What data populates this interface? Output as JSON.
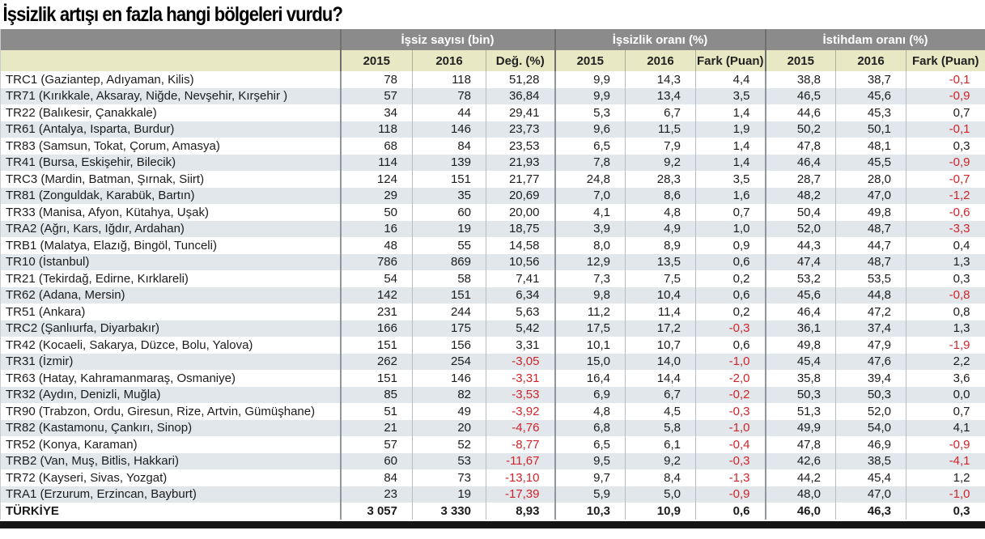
{
  "title": "İşsizlik artışı en fazla hangi bölgeleri vurdu?",
  "colors": {
    "group_header_bg": "#8b8b8b",
    "group_header_text": "#ffffff",
    "year_header_bg": "#e8e8c4",
    "row_stripe_bg": "#e1e7eb",
    "negative_value": "#d2232a",
    "bottom_bar": "#151515"
  },
  "chart_data": {
    "type": "table",
    "title": "İşsizlik artışı en fazla hangi bölgeleri vurdu?",
    "region_column_label": "",
    "groups": [
      {
        "label": "İşsiz sayısı (bin)",
        "columns": [
          "2015",
          "2016",
          "Değ. (%)"
        ]
      },
      {
        "label": "İşsizlik oranı (%)",
        "columns": [
          "2015",
          "2016",
          "Fark (Puan)"
        ]
      },
      {
        "label": "İstihdam oranı (%)",
        "columns": [
          "2015",
          "2016",
          "Fark (Puan)"
        ]
      }
    ],
    "rows": [
      {
        "region": "TRC1 (Gaziantep, Adıyaman, Kilis)",
        "values": [
          "78",
          "118",
          "51,28",
          "9,9",
          "14,3",
          "4,4",
          "38,8",
          "38,7",
          "-0,1"
        ]
      },
      {
        "region": "TR71 (Kırıkkale, Aksaray, Niğde, Nevşehir, Kırşehir )",
        "values": [
          "57",
          "78",
          "36,84",
          "9,9",
          "13,4",
          "3,5",
          "46,5",
          "45,6",
          "-0,9"
        ]
      },
      {
        "region": "TR22 (Balıkesir, Çanakkale)",
        "values": [
          "34",
          "44",
          "29,41",
          "5,3",
          "6,7",
          "1,4",
          "44,6",
          "45,3",
          "0,7"
        ]
      },
      {
        "region": "TR61 (Antalya, Isparta, Burdur)",
        "values": [
          "118",
          "146",
          "23,73",
          "9,6",
          "11,5",
          "1,9",
          "50,2",
          "50,1",
          "-0,1"
        ]
      },
      {
        "region": "TR83 (Samsun, Tokat, Çorum, Amasya)",
        "values": [
          "68",
          "84",
          "23,53",
          "6,5",
          "7,9",
          "1,4",
          "47,8",
          "48,1",
          "0,3"
        ]
      },
      {
        "region": "TR41 (Bursa, Eskişehir, Bilecik)",
        "values": [
          "114",
          "139",
          "21,93",
          "7,8",
          "9,2",
          "1,4",
          "46,4",
          "45,5",
          "-0,9"
        ]
      },
      {
        "region": "TRC3 (Mardin, Batman, Şırnak, Siirt)",
        "values": [
          "124",
          "151",
          "21,77",
          "24,8",
          "28,3",
          "3,5",
          "28,7",
          "28,0",
          "-0,7"
        ]
      },
      {
        "region": "TR81 (Zonguldak, Karabük, Bartın)",
        "values": [
          "29",
          "35",
          "20,69",
          "7,0",
          "8,6",
          "1,6",
          "48,2",
          "47,0",
          "-1,2"
        ]
      },
      {
        "region": "TR33 (Manisa, Afyon, Kütahya, Uşak)",
        "values": [
          "50",
          "60",
          "20,00",
          "4,1",
          "4,8",
          "0,7",
          "50,4",
          "49,8",
          "-0,6"
        ]
      },
      {
        "region": "TRA2 (Ağrı, Kars, Iğdır, Ardahan)",
        "values": [
          "16",
          "19",
          "18,75",
          "3,9",
          "4,9",
          "1,0",
          "52,0",
          "48,7",
          "-3,3"
        ]
      },
      {
        "region": "TRB1 (Malatya, Elazığ, Bingöl, Tunceli)",
        "values": [
          "48",
          "55",
          "14,58",
          "8,0",
          "8,9",
          "0,9",
          "44,3",
          "44,7",
          "0,4"
        ]
      },
      {
        "region": "TR10 (İstanbul)",
        "values": [
          "786",
          "869",
          "10,56",
          "12,9",
          "13,5",
          "0,6",
          "47,4",
          "48,7",
          "1,3"
        ]
      },
      {
        "region": "TR21 (Tekirdağ, Edirne, Kırklareli)",
        "values": [
          "54",
          "58",
          "7,41",
          "7,3",
          "7,5",
          "0,2",
          "53,2",
          "53,5",
          "0,3"
        ]
      },
      {
        "region": "TR62 (Adana, Mersin)",
        "values": [
          "142",
          "151",
          "6,34",
          "9,8",
          "10,4",
          "0,6",
          "45,6",
          "44,8",
          "-0,8"
        ]
      },
      {
        "region": "TR51 (Ankara)",
        "values": [
          "231",
          "244",
          "5,63",
          "11,2",
          "11,4",
          "0,2",
          "46,4",
          "47,2",
          "0,8"
        ]
      },
      {
        "region": "TRC2 (Şanlıurfa, Diyarbakır)",
        "values": [
          "166",
          "175",
          "5,42",
          "17,5",
          "17,2",
          "-0,3",
          "36,1",
          "37,4",
          "1,3"
        ]
      },
      {
        "region": "TR42 (Kocaeli, Sakarya, Düzce, Bolu, Yalova)",
        "values": [
          "151",
          "156",
          "3,31",
          "10,1",
          "10,7",
          "0,6",
          "49,8",
          "47,9",
          "-1,9"
        ]
      },
      {
        "region": "TR31 (İzmir)",
        "values": [
          "262",
          "254",
          "-3,05",
          "15,0",
          "14,0",
          "-1,0",
          "45,4",
          "47,6",
          "2,2"
        ]
      },
      {
        "region": "TR63 (Hatay, Kahramanmaraş, Osmaniye)",
        "values": [
          "151",
          "146",
          "-3,31",
          "16,4",
          "14,4",
          "-2,0",
          "35,8",
          "39,4",
          "3,6"
        ]
      },
      {
        "region": "TR32 (Aydın, Denizli, Muğla)",
        "values": [
          "85",
          "82",
          "-3,53",
          "6,9",
          "6,7",
          "-0,2",
          "50,3",
          "50,3",
          "0,0"
        ]
      },
      {
        "region": "TR90 (Trabzon, Ordu, Giresun, Rize, Artvin, Gümüşhane)",
        "values": [
          "51",
          "49",
          "-3,92",
          "4,8",
          "4,5",
          "-0,3",
          "51,3",
          "52,0",
          "0,7"
        ]
      },
      {
        "region": "TR82 (Kastamonu, Çankırı, Sinop)",
        "values": [
          "21",
          "20",
          "-4,76",
          "6,8",
          "5,8",
          "-1,0",
          "49,9",
          "54,0",
          "4,1"
        ]
      },
      {
        "region": "TR52 (Konya, Karaman)",
        "values": [
          "57",
          "52",
          "-8,77",
          "6,5",
          "6,1",
          "-0,4",
          "47,8",
          "46,9",
          "-0,9"
        ]
      },
      {
        "region": "TRB2 (Van, Muş, Bitlis, Hakkari)",
        "values": [
          "60",
          "53",
          "-11,67",
          "9,5",
          "9,2",
          "-0,3",
          "42,6",
          "38,5",
          "-4,1"
        ]
      },
      {
        "region": "TR72 (Kayseri, Sivas, Yozgat)",
        "values": [
          "84",
          "73",
          "-13,10",
          "9,7",
          "8,4",
          "-1,3",
          "44,2",
          "45,4",
          "1,2"
        ]
      },
      {
        "region": "TRA1 (Erzurum, Erzincan, Bayburt)",
        "values": [
          "23",
          "19",
          "-17,39",
          "5,9",
          "5,0",
          "-0,9",
          "48,0",
          "47,0",
          "-1,0"
        ]
      }
    ],
    "total": {
      "region": "TÜRKİYE",
      "values": [
        "3 057",
        "3 330",
        "8,93",
        "10,3",
        "10,9",
        "0,6",
        "46,0",
        "46,3",
        "0,3"
      ]
    }
  }
}
